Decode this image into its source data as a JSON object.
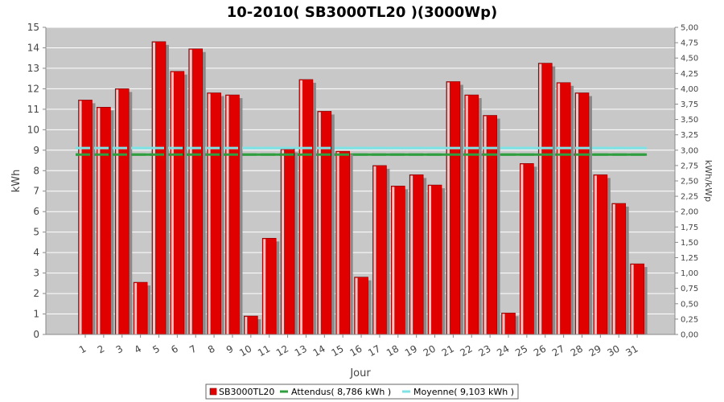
{
  "chart_data": {
    "type": "bar",
    "title": "10-2010( SB3000TL20 )(3000Wp)",
    "xlabel": "Jour",
    "ylabel": "kWh",
    "y2label": "kWh/kWp",
    "ylim": [
      0,
      15
    ],
    "y2lim": [
      0,
      5
    ],
    "yticks": [
      "0",
      "1",
      "2",
      "3",
      "4",
      "5",
      "6",
      "7",
      "8",
      "9",
      "10",
      "11",
      "12",
      "13",
      "14",
      "15"
    ],
    "y2ticks": [
      "0,00",
      "0,25",
      "0,50",
      "0,75",
      "1,00",
      "1,25",
      "1,50",
      "1,75",
      "2,00",
      "2,25",
      "2,50",
      "2,75",
      "3,00",
      "3,25",
      "3,50",
      "3,75",
      "4,00",
      "4,25",
      "4,50",
      "4,75",
      "5,00"
    ],
    "categories": [
      "1",
      "2",
      "3",
      "4",
      "5",
      "6",
      "7",
      "8",
      "9",
      "10",
      "11",
      "12",
      "13",
      "14",
      "15",
      "16",
      "17",
      "18",
      "19",
      "20",
      "21",
      "22",
      "23",
      "24",
      "25",
      "26",
      "27",
      "28",
      "29",
      "30",
      "31"
    ],
    "series": [
      {
        "name": "SB3000TL20",
        "values": [
          11.45,
          11.1,
          12.0,
          2.55,
          14.3,
          12.85,
          13.95,
          11.8,
          11.7,
          0.9,
          4.7,
          9.05,
          12.45,
          10.9,
          8.95,
          2.8,
          8.25,
          7.25,
          7.8,
          7.3,
          12.35,
          11.7,
          10.7,
          1.05,
          8.35,
          13.25,
          12.3,
          11.8,
          7.8,
          6.4,
          3.45
        ]
      }
    ],
    "reference_lines": [
      {
        "name": "Attendus",
        "value": 8.786,
        "color": "#2e9e3e"
      },
      {
        "name": "Moyenne",
        "value": 9.103,
        "color": "#7fe3e6"
      }
    ],
    "legend": {
      "placement": "bottom",
      "items": [
        "SB3000TL20",
        "Attendus( 8,786 kWh )",
        "Moyenne( 9,103 kWh )"
      ]
    },
    "colors": {
      "bar": "#e00000",
      "bar_highlight": "#ff5a5a",
      "bar_shadow": "#8a8a8a",
      "plot_bg": "#c8c8c8",
      "grid": "#ffffff"
    },
    "grid": true
  }
}
